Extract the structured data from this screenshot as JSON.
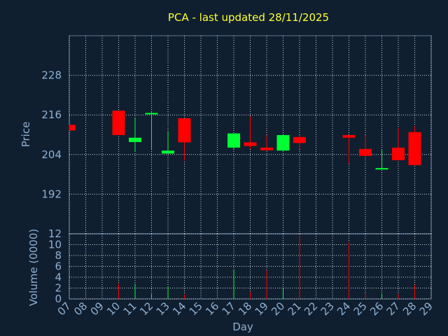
{
  "chart_data": [
    {
      "type": "candlestick",
      "title": "PCA - last updated 28/11/2025",
      "ylabel": "Price",
      "ylim": [
        180,
        240
      ],
      "yticks": [
        192,
        204,
        216,
        228
      ],
      "colors": {
        "up": "#00ff33",
        "down": "#ff0000",
        "grid": "#ffffff",
        "axis_text": "#8fb0d0",
        "title": "#ffff33"
      },
      "grid": true,
      "candles": [
        {
          "day": "07",
          "open": 213.0,
          "high": 213.0,
          "low": 211.3,
          "close": 211.3
        },
        {
          "day": "10",
          "open": 217.3,
          "high": 217.3,
          "low": 209.9,
          "close": 209.9
        },
        {
          "day": "11",
          "open": 207.8,
          "high": 215.0,
          "low": 204.8,
          "close": 209.1
        },
        {
          "day": "12",
          "open": 216.4,
          "high": 216.8,
          "low": 205.7,
          "close": 216.6
        },
        {
          "day": "13",
          "open": 204.3,
          "high": 211.0,
          "low": 204.3,
          "close": 205.2
        },
        {
          "day": "14",
          "open": 215.0,
          "high": 215.0,
          "low": 202.2,
          "close": 207.7
        },
        {
          "day": "17",
          "open": 206.1,
          "high": 210.4,
          "low": 205.7,
          "close": 210.4
        },
        {
          "day": "18",
          "open": 207.7,
          "high": 215.6,
          "low": 205.7,
          "close": 206.6
        },
        {
          "day": "19",
          "open": 206.1,
          "high": 209.9,
          "low": 205.3,
          "close": 205.3
        },
        {
          "day": "20",
          "open": 205.2,
          "high": 209.9,
          "low": 205.2,
          "close": 209.9
        },
        {
          "day": "21",
          "open": 209.3,
          "high": 209.9,
          "low": 205.7,
          "close": 207.5
        },
        {
          "day": "24",
          "open": 209.9,
          "high": 209.9,
          "low": 201.2,
          "close": 209.1
        },
        {
          "day": "25",
          "open": 205.7,
          "high": 209.9,
          "low": 203.6,
          "close": 203.6
        },
        {
          "day": "26",
          "open": 199.5,
          "high": 205.7,
          "low": 199.5,
          "close": 199.9
        },
        {
          "day": "27",
          "open": 206.1,
          "high": 212.1,
          "low": 202.3,
          "close": 202.3
        },
        {
          "day": "28",
          "open": 210.8,
          "high": 212.6,
          "low": 200.8,
          "close": 200.8
        }
      ]
    },
    {
      "type": "bar",
      "ylabel": "Volume (0000)",
      "ylim": [
        0,
        12
      ],
      "yticks": [
        0,
        2,
        4,
        6,
        8,
        10,
        12
      ],
      "categories": [
        "07",
        "08",
        "09",
        "10",
        "11",
        "12",
        "13",
        "14",
        "15",
        "16",
        "17",
        "18",
        "19",
        "20",
        "21",
        "22",
        "23",
        "24",
        "25",
        "26",
        "27",
        "28",
        "29"
      ],
      "xlabel": "Day",
      "bars": [
        {
          "day": "10",
          "value": 2.8,
          "color": "#ff0000"
        },
        {
          "day": "11",
          "value": 2.8,
          "color": "#00ff33"
        },
        {
          "day": "12",
          "value": 0.9,
          "color": "#00ff33"
        },
        {
          "day": "13",
          "value": 2.3,
          "color": "#00ff33"
        },
        {
          "day": "14",
          "value": 0.8,
          "color": "#ff0000"
        },
        {
          "day": "17",
          "value": 5.3,
          "color": "#00ff33"
        },
        {
          "day": "18",
          "value": 1.3,
          "color": "#ff0000"
        },
        {
          "day": "19",
          "value": 5.3,
          "color": "#ff0000"
        },
        {
          "day": "20",
          "value": 1.8,
          "color": "#00ff33"
        },
        {
          "day": "21",
          "value": 11.7,
          "color": "#ff0000"
        },
        {
          "day": "24",
          "value": 10.5,
          "color": "#ff0000"
        },
        {
          "day": "25",
          "value": 1.0,
          "color": "#ff0000"
        },
        {
          "day": "26",
          "value": 0.9,
          "color": "#00ff33"
        },
        {
          "day": "27",
          "value": 0.9,
          "color": "#ff0000"
        },
        {
          "day": "28",
          "value": 2.6,
          "color": "#ff0000"
        }
      ]
    }
  ]
}
